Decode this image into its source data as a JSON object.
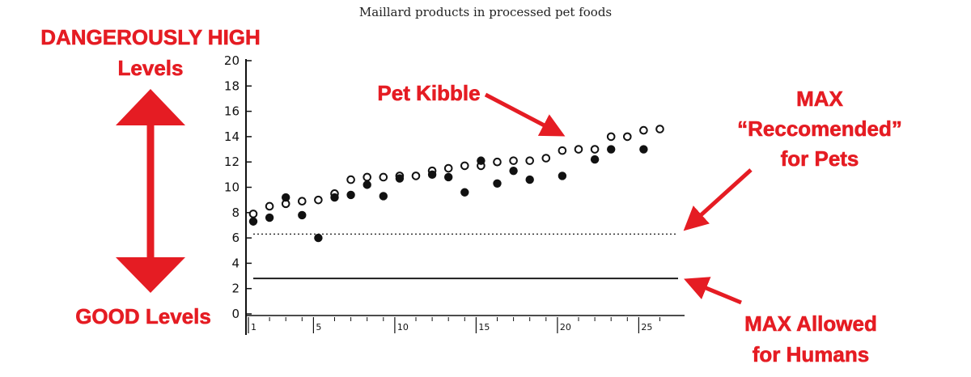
{
  "chart_data": {
    "type": "scatter",
    "title": "Maillard products in processed pet foods",
    "xlabel": "",
    "ylabel": "",
    "ylim": [
      0,
      20
    ],
    "y_ticks": [
      "0",
      "2",
      "4",
      "6",
      "8",
      "10",
      "12",
      "14",
      "16",
      "18",
      "20"
    ],
    "x_ticks": [
      "1",
      "5",
      "10",
      "15",
      "20",
      "25"
    ],
    "grid": false,
    "series": [
      {
        "marker": "open-circle",
        "x": [
          1,
          2,
          3,
          4,
          5,
          6,
          7,
          8,
          9,
          10,
          11,
          12,
          13,
          14,
          15,
          16,
          17,
          18,
          19,
          20,
          21,
          22,
          23,
          24,
          25,
          26
        ],
        "y": [
          7.9,
          8.5,
          8.7,
          8.9,
          9.0,
          9.5,
          10.6,
          10.8,
          10.8,
          10.9,
          10.9,
          11.3,
          11.5,
          11.7,
          11.7,
          12.0,
          12.1,
          12.1,
          12.3,
          12.9,
          13.0,
          13.0,
          14.0,
          14.0,
          14.5,
          14.6
        ]
      },
      {
        "marker": "filled-circle",
        "x": [
          1,
          2,
          3,
          4,
          5,
          6,
          7,
          8,
          9,
          10,
          12,
          13,
          14,
          15,
          16,
          17,
          18,
          20,
          22,
          23,
          25
        ],
        "y": [
          7.3,
          7.6,
          9.2,
          7.8,
          6.0,
          9.2,
          9.4,
          10.2,
          9.3,
          10.7,
          11.0,
          10.8,
          9.6,
          12.1,
          10.3,
          11.3,
          10.6,
          10.9,
          12.2,
          13.0,
          13.0
        ]
      }
    ],
    "reference_lines": [
      {
        "style": "dotted",
        "y": 6.3
      },
      {
        "style": "solid",
        "y": 2.8
      }
    ]
  },
  "annotations": {
    "dangerous_line1": "DANGEROUSLY HIGH",
    "dangerous_line2": "Levels",
    "good": "GOOD Levels",
    "pet_kibble": "Pet Kibble",
    "max_rec_line1": "MAX",
    "max_rec_line2": "“Reccomended”",
    "max_rec_line3": "for Pets",
    "max_allowed_line1": "MAX Allowed",
    "max_allowed_line2": "for Humans"
  },
  "colors": {
    "annotation": "#e51c23",
    "ink": "#111111"
  }
}
